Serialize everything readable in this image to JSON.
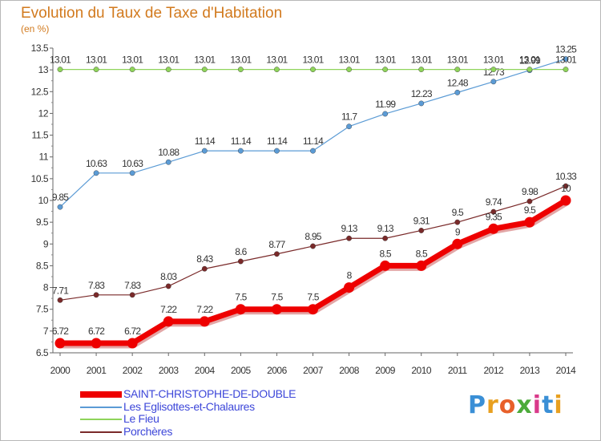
{
  "title": "Evolution du Taux de Taxe d'Habitation",
  "unit": "(en %)",
  "logo": {
    "text": "Proxiti",
    "letter_colors": [
      "#3a8fd6",
      "#e8a020",
      "#e8602a",
      "#4cab3a",
      "#d93a8a",
      "#3a8fd6",
      "#e8a020"
    ]
  },
  "chart_data": {
    "type": "line",
    "x": [
      "2000",
      "2001",
      "2002",
      "2003",
      "2004",
      "2005",
      "2006",
      "2007",
      "2008",
      "2009",
      "2010",
      "2011",
      "2012",
      "2013",
      "2014"
    ],
    "ylim": [
      6.5,
      13.5
    ],
    "yticks": [
      "6.5",
      "7",
      "7.5",
      "8",
      "8.5",
      "9",
      "9.5",
      "10",
      "10.5",
      "11",
      "11.5",
      "12",
      "12.5",
      "13",
      "13.5"
    ],
    "grid": false,
    "legend_position": "bottom-left",
    "series": [
      {
        "name": "SAINT-CHRISTOPHE-DE-DOUBLE",
        "color": "#ee0000",
        "style": "thick",
        "values": [
          6.72,
          6.72,
          6.72,
          7.22,
          7.22,
          7.5,
          7.5,
          7.5,
          8,
          8.5,
          8.5,
          9,
          9.35,
          9.5,
          10
        ],
        "labels": [
          "6.72",
          "6.72",
          "6.72",
          "7.22",
          "7.22",
          "7.5",
          "7.5",
          "7.5",
          "8",
          "8.5",
          "8.5",
          "9",
          "9.35",
          "9.5",
          "10"
        ]
      },
      {
        "name": "Les Eglisottes-et-Chalaures",
        "color": "#5b9bd5",
        "style": "thin",
        "values": [
          9.85,
          10.63,
          10.63,
          10.88,
          11.14,
          11.14,
          11.14,
          11.14,
          11.7,
          11.99,
          12.23,
          12.48,
          12.73,
          12.99,
          13.25
        ],
        "labels": [
          "9.85",
          "10.63",
          "10.63",
          "10.88",
          "11.14",
          "11.14",
          "11.14",
          "11.14",
          "11.7",
          "11.99",
          "12.23",
          "12.48",
          "12.73",
          "12.99",
          "13.25"
        ]
      },
      {
        "name": "Le Fieu",
        "color": "#8fd45a",
        "style": "thin",
        "values": [
          13.01,
          13.01,
          13.01,
          13.01,
          13.01,
          13.01,
          13.01,
          13.01,
          13.01,
          13.01,
          13.01,
          13.01,
          13.01,
          13.01,
          13.01
        ],
        "labels": [
          "13.01",
          "13.01",
          "13.01",
          "13.01",
          "13.01",
          "13.01",
          "13.01",
          "13.01",
          "13.01",
          "13.01",
          "13.01",
          "13.01",
          "13.01",
          "13.01",
          "13.01"
        ]
      },
      {
        "name": "Porchères",
        "color": "#7a2a2a",
        "style": "thin",
        "values": [
          7.71,
          7.83,
          7.83,
          8.03,
          8.43,
          8.6,
          8.77,
          8.95,
          9.13,
          9.13,
          9.31,
          9.5,
          9.74,
          9.98,
          10.33
        ],
        "labels": [
          "7.71",
          "7.83",
          "7.83",
          "8.03",
          "8.43",
          "8.6",
          "8.77",
          "8.95",
          "9.13",
          "9.13",
          "9.31",
          "9.5",
          "9.74",
          "9.98",
          "10.33"
        ]
      }
    ]
  }
}
